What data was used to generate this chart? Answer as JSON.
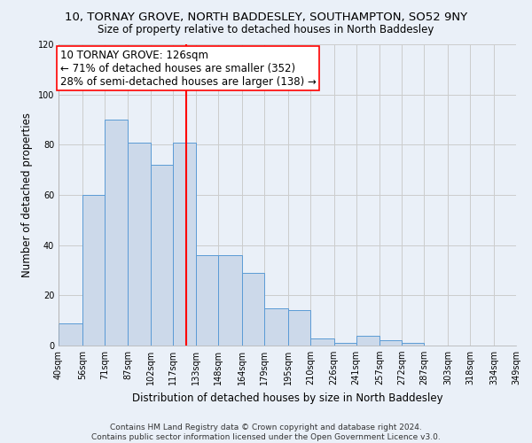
{
  "title": "10, TORNAY GROVE, NORTH BADDESLEY, SOUTHAMPTON, SO52 9NY",
  "subtitle": "Size of property relative to detached houses in North Baddesley",
  "xlabel": "Distribution of detached houses by size in North Baddesley",
  "ylabel": "Number of detached properties",
  "bar_edges": [
    40,
    56,
    71,
    87,
    102,
    117,
    133,
    148,
    164,
    179,
    195,
    210,
    226,
    241,
    257,
    272,
    287,
    303,
    318,
    334,
    349
  ],
  "bar_heights": [
    9,
    60,
    90,
    81,
    72,
    81,
    36,
    36,
    29,
    15,
    14,
    3,
    1,
    4,
    2,
    1,
    0,
    0,
    0,
    0
  ],
  "bar_color": "#ccd9ea",
  "bar_edge_color": "#5b9bd5",
  "grid_color": "#cccccc",
  "bg_color": "#eaf0f8",
  "vline_x": 126,
  "vline_color": "red",
  "annotation_line1": "10 TORNAY GROVE: 126sqm",
  "annotation_line2": "← 71% of detached houses are smaller (352)",
  "annotation_line3": "28% of semi-detached houses are larger (138) →",
  "annotation_box_color": "white",
  "annotation_box_edge_color": "red",
  "ylim": [
    0,
    120
  ],
  "yticks": [
    0,
    20,
    40,
    60,
    80,
    100,
    120
  ],
  "tick_labels": [
    "40sqm",
    "56sqm",
    "71sqm",
    "87sqm",
    "102sqm",
    "117sqm",
    "133sqm",
    "148sqm",
    "164sqm",
    "179sqm",
    "195sqm",
    "210sqm",
    "226sqm",
    "241sqm",
    "257sqm",
    "272sqm",
    "287sqm",
    "303sqm",
    "318sqm",
    "334sqm",
    "349sqm"
  ],
  "footer": "Contains HM Land Registry data © Crown copyright and database right 2024.\nContains public sector information licensed under the Open Government Licence v3.0.",
  "title_fontsize": 9.5,
  "subtitle_fontsize": 8.5,
  "xlabel_fontsize": 8.5,
  "ylabel_fontsize": 8.5,
  "footer_fontsize": 6.5,
  "annotation_fontsize": 8.5,
  "tick_fontsize": 7
}
